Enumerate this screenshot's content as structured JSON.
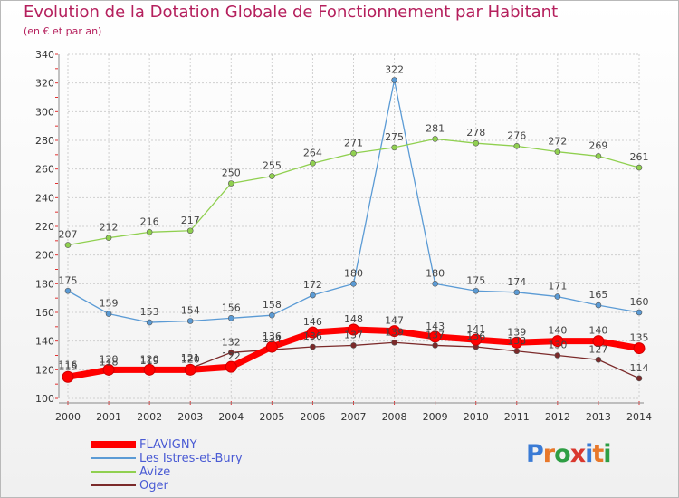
{
  "title": "Evolution de la Dotation Globale de Fonctionnement par Habitant",
  "subtitle": "(en € et par an)",
  "logo": {
    "text": "Proxiti",
    "letters": [
      "P",
      "r",
      "o",
      "x",
      "i",
      "t",
      "i"
    ],
    "colors": [
      "#3a7bd5",
      "#e8782a",
      "#2e9e44",
      "#d9382e",
      "#3a7bd5",
      "#e8782a",
      "#2e9e44"
    ]
  },
  "chart_data": {
    "type": "line",
    "title": "Evolution de la Dotation Globale de Fonctionnement par Habitant",
    "subtitle": "(en € et par an)",
    "x": [
      "2000",
      "2001",
      "2002",
      "2003",
      "2004",
      "2005",
      "2006",
      "2007",
      "2008",
      "2009",
      "2010",
      "2011",
      "2012",
      "2013",
      "2014"
    ],
    "ylim": [
      100,
      340
    ],
    "yticks": [
      100,
      120,
      140,
      160,
      180,
      200,
      220,
      240,
      260,
      280,
      300,
      320,
      340
    ],
    "grid": true,
    "legend_position": "bottom-left",
    "series": [
      {
        "name": "FLAVIGNY",
        "color": "#ff0000",
        "values": [
          115,
          120,
          120,
          120,
          122,
          136,
          146,
          148,
          147,
          143,
          141,
          139,
          140,
          140,
          135
        ]
      },
      {
        "name": "Les Istres-et-Bury",
        "color": "#5b9bd5",
        "values": [
          175,
          159,
          153,
          154,
          156,
          158,
          172,
          180,
          322,
          180,
          175,
          174,
          171,
          165,
          160
        ]
      },
      {
        "name": "Avize",
        "color": "#90d050",
        "values": [
          207,
          212,
          216,
          217,
          250,
          255,
          264,
          271,
          275,
          281,
          278,
          276,
          272,
          269,
          261
        ]
      },
      {
        "name": "Oger",
        "color": "#7b2a2a",
        "values": [
          116,
          118,
          119,
          121,
          132,
          134,
          136,
          137,
          139,
          137,
          136,
          133,
          130,
          127,
          114
        ]
      }
    ]
  }
}
